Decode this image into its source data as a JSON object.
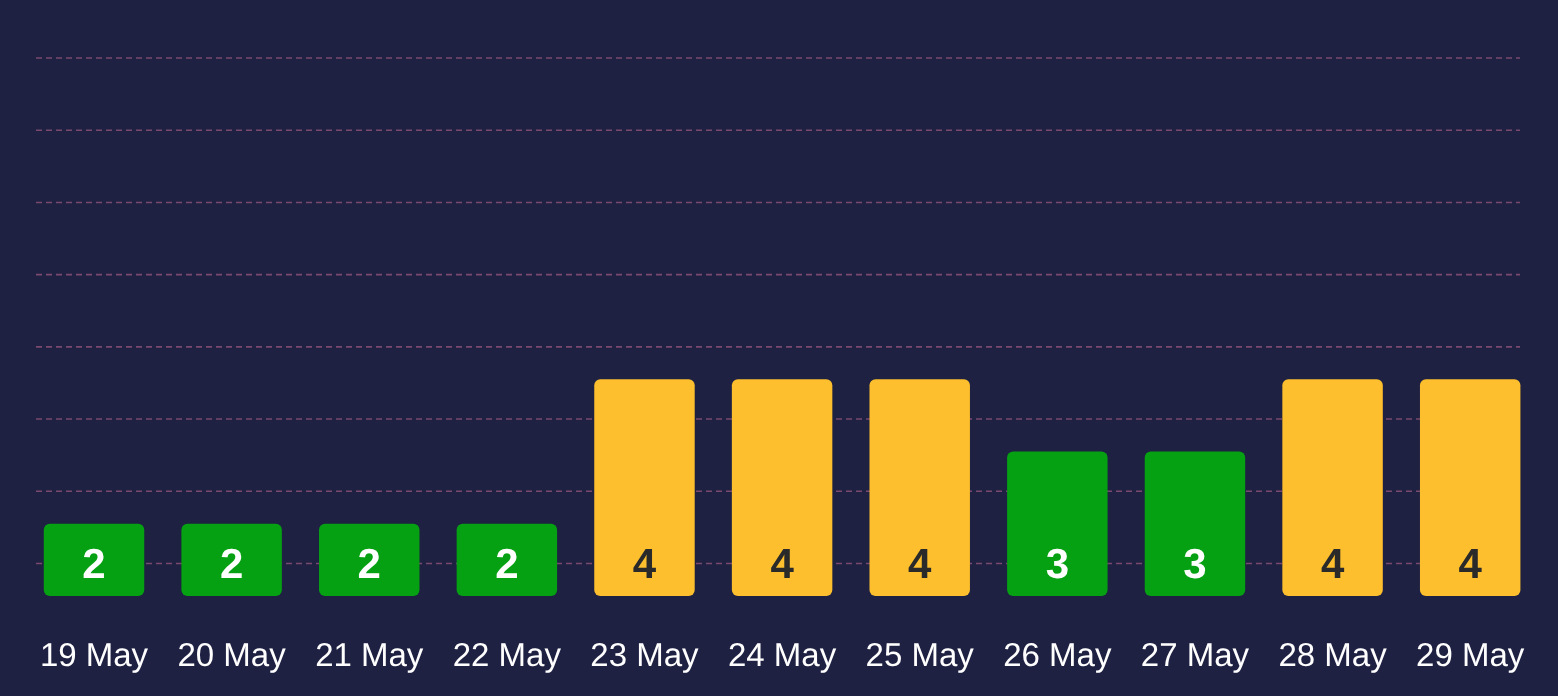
{
  "chart_data": {
    "type": "bar",
    "categories": [
      "19 May",
      "20 May",
      "21 May",
      "22 May",
      "23 May",
      "24 May",
      "25 May",
      "26 May",
      "27 May",
      "28 May",
      "29 May"
    ],
    "values": [
      2,
      2,
      2,
      2,
      4,
      4,
      4,
      3,
      3,
      4,
      4
    ],
    "colors": [
      "#05a112",
      "#05a112",
      "#05a112",
      "#05a112",
      "#fdbf2d",
      "#fdbf2d",
      "#fdbf2d",
      "#05a112",
      "#05a112",
      "#fdbf2d",
      "#fdbf2d"
    ],
    "data_labels": true,
    "ylim": [
      1,
      8.45
    ],
    "yticks": [
      {
        "value": 1.45,
        "label": null
      },
      {
        "value": 2.45,
        "label": null
      },
      {
        "value": 3.45,
        "label": null
      },
      {
        "value": 4.45,
        "label": null
      },
      {
        "value": 5.45,
        "label": null
      },
      {
        "value": 6.45,
        "label": null
      },
      {
        "value": 7.45,
        "label": null
      },
      {
        "value": 8.45,
        "label": null
      }
    ],
    "grid": "y",
    "tick_labels": "x"
  }
}
